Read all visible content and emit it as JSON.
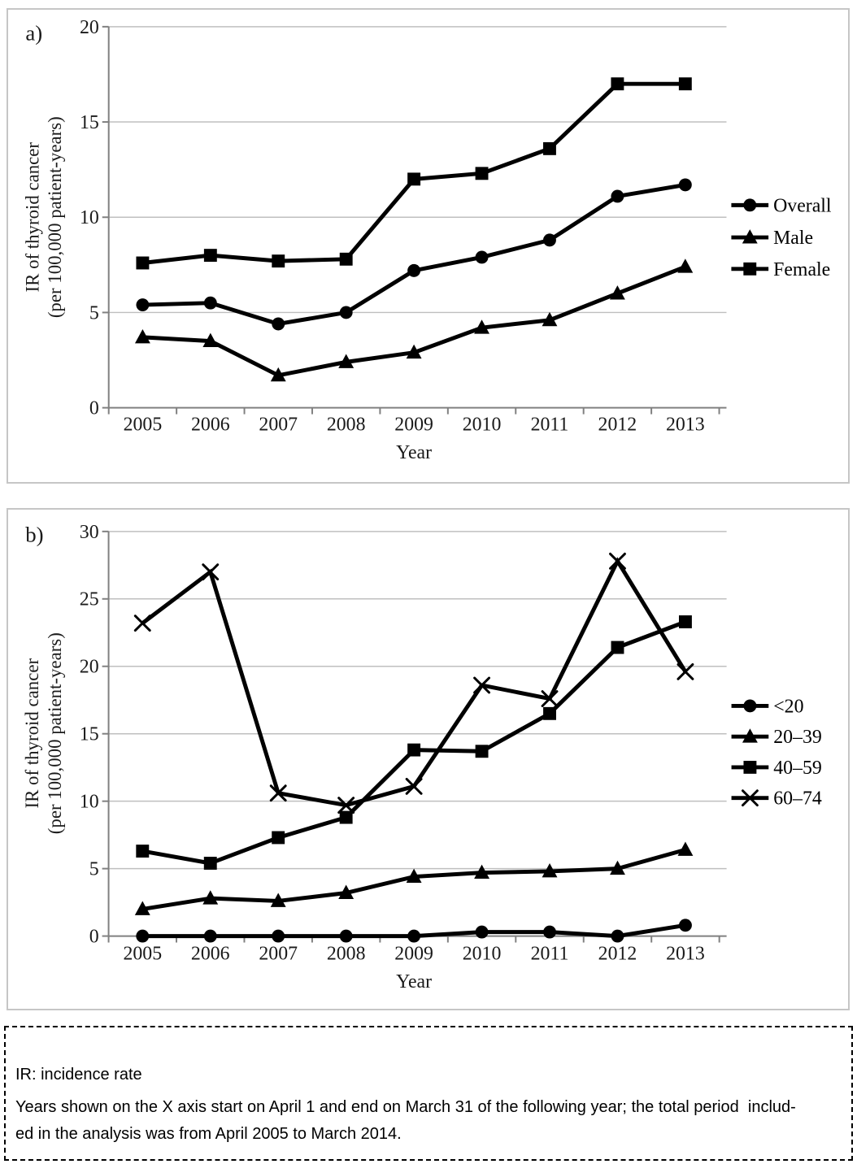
{
  "colors": {
    "series": "#000000",
    "grid": "#bfbfbf",
    "axis": "#808080",
    "panel_border": "#c6c6c6"
  },
  "chart_data": [
    {
      "id": "a",
      "type": "line",
      "panel_label": "a)",
      "categories": [
        "2005",
        "2006",
        "2007",
        "2008",
        "2009",
        "2010",
        "2011",
        "2012",
        "2013"
      ],
      "series": [
        {
          "name": "Overall",
          "marker": "circle",
          "values": [
            5.4,
            5.5,
            4.4,
            5.0,
            7.2,
            7.9,
            8.8,
            11.1,
            11.7
          ]
        },
        {
          "name": "Male",
          "marker": "triangle",
          "values": [
            3.7,
            3.5,
            1.7,
            2.4,
            2.9,
            4.2,
            4.6,
            6.0,
            7.4
          ]
        },
        {
          "name": "Female",
          "marker": "square",
          "values": [
            7.6,
            8.0,
            7.7,
            7.8,
            12.0,
            12.3,
            13.6,
            17.0,
            17.0
          ]
        }
      ],
      "xlabel": "Year",
      "ylabel_lines": [
        "IR of thyroid cancer",
        "(per 100,000 patient-years)"
      ],
      "ylim": [
        0,
        20
      ],
      "ytick_step": 5,
      "grid": true,
      "legend_position": "right"
    },
    {
      "id": "b",
      "type": "line",
      "panel_label": "b)",
      "categories": [
        "2005",
        "2006",
        "2007",
        "2008",
        "2009",
        "2010",
        "2011",
        "2012",
        "2013"
      ],
      "series": [
        {
          "name": "<20",
          "marker": "circle",
          "values": [
            0.0,
            0.0,
            0.0,
            0.0,
            0.0,
            0.3,
            0.3,
            0.0,
            0.8
          ]
        },
        {
          "name": "20–39",
          "marker": "triangle",
          "values": [
            2.0,
            2.8,
            2.6,
            3.2,
            4.4,
            4.7,
            4.8,
            5.0,
            6.4
          ]
        },
        {
          "name": "40–59",
          "marker": "square",
          "values": [
            6.3,
            5.4,
            7.3,
            8.8,
            13.8,
            13.7,
            16.5,
            21.4,
            23.3
          ]
        },
        {
          "name": "60–74",
          "marker": "x",
          "values": [
            23.2,
            27.0,
            10.6,
            9.7,
            11.1,
            18.6,
            17.6,
            27.8,
            19.6
          ]
        }
      ],
      "xlabel": "Year",
      "ylabel_lines": [
        "IR of thyroid cancer",
        "(per 100,000 patient-years)"
      ],
      "ylim": [
        0,
        30
      ],
      "ytick_step": 5,
      "grid": true,
      "legend_position": "right"
    }
  ],
  "footnote": {
    "lines": [
      "IR: incidence rate",
      "Years shown on the X axis start on April 1 and end on March 31 of the following year; the total period  includ-",
      "ed in the analysis was from April 2005 to March 2014."
    ]
  }
}
